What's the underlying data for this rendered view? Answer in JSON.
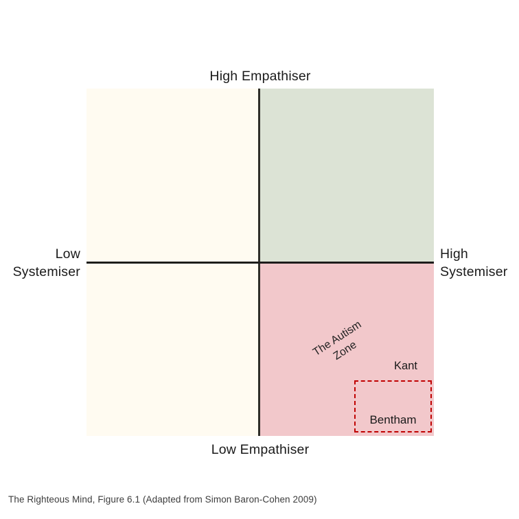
{
  "figure": {
    "axes": {
      "top_label": "High Empathiser",
      "bottom_label": "Low Empathiser",
      "left_label_line1": "Low",
      "left_label_line2": "Systemiser",
      "right_label_line1": "High",
      "right_label_line2": "Systemiser"
    },
    "quadrants": {
      "top_left": {
        "color": "#FFFBF1"
      },
      "top_right": {
        "color": "#DCE3D5"
      },
      "bottom_left": {
        "color": "#FFFBF1"
      },
      "bottom_right": {
        "color": "#F2C8CB"
      }
    },
    "annotations": {
      "autism_zone_line1": "The Autism",
      "autism_zone_line2": "Zone",
      "kant": "Kant",
      "bentham": "Bentham"
    },
    "colors": {
      "axis_line": "#2e2d28",
      "dashed_box_border": "#C00000",
      "text": "#1a1a1a",
      "caption_text": "#3c3c3c",
      "background": "#ffffff"
    },
    "caption": "The Righteous Mind, Figure 6.1 (Adapted from Simon Baron-Cohen 2009)"
  }
}
